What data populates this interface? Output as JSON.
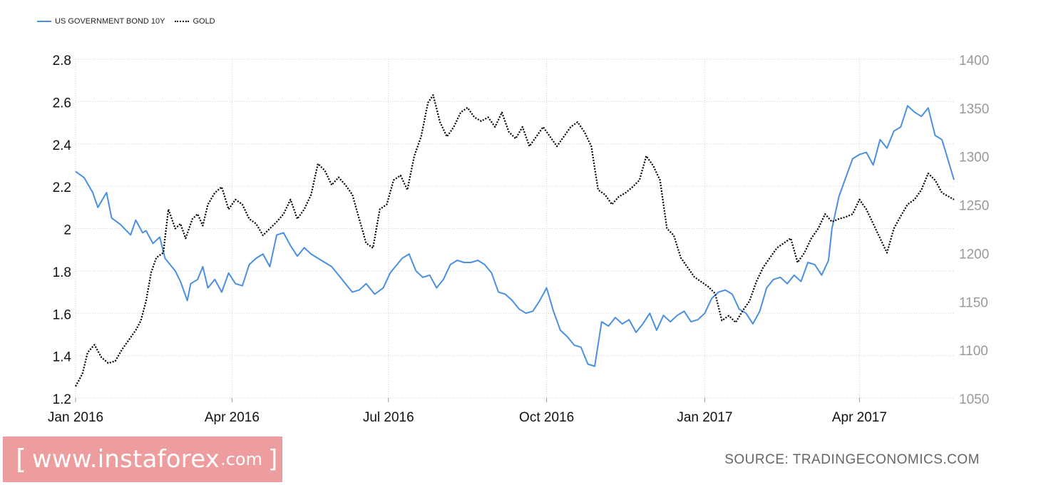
{
  "legend": {
    "items": [
      {
        "label": "US GOVERNMENT BOND 10Y",
        "style": "solid",
        "color": "#4a90e2"
      },
      {
        "label": "GOLD",
        "style": "dotted",
        "color": "#000000"
      }
    ]
  },
  "footer": {
    "brand_open": "[",
    "brand_main": "www.instaforex",
    "brand_domain": ".com",
    "brand_close": "]",
    "brand_color": "#ee9d9f",
    "source": "SOURCE: TRADINGECONOMICS.COM"
  },
  "chart_data": {
    "type": "line",
    "grid": true,
    "legend_position": "top-left",
    "x_ticks": [
      {
        "label": "Jan 2016",
        "date": "2016-01-01"
      },
      {
        "label": "Apr 2016",
        "date": "2016-04-01"
      },
      {
        "label": "Jul 2016",
        "date": "2016-07-01"
      },
      {
        "label": "Oct 2016",
        "date": "2016-10-01"
      },
      {
        "label": "Jan 2017",
        "date": "2017-01-01"
      },
      {
        "label": "Apr 2017",
        "date": "2017-04-01"
      }
    ],
    "xlim": [
      "2016-01-01",
      "2017-05-26"
    ],
    "y_left": {
      "ticks": [
        "1.2",
        "1.4",
        "1.6",
        "1.8",
        "2",
        "2.2",
        "2.4",
        "2.6",
        "2.8"
      ],
      "ylim": [
        1.2,
        2.8
      ]
    },
    "y_right": {
      "ticks": [
        "1050",
        "1100",
        "1150",
        "1200",
        "1250",
        "1300",
        "1350",
        "1400"
      ],
      "ylim": [
        1050,
        1400
      ]
    },
    "series": [
      {
        "name": "US GOVERNMENT BOND 10Y",
        "axis": "left",
        "color": "#4a90e2",
        "style": "solid",
        "points": [
          [
            "2016-01-01",
            2.27
          ],
          [
            "2016-01-06",
            2.24
          ],
          [
            "2016-01-11",
            2.17
          ],
          [
            "2016-01-14",
            2.1
          ],
          [
            "2016-01-19",
            2.17
          ],
          [
            "2016-01-22",
            2.05
          ],
          [
            "2016-01-27",
            2.02
          ],
          [
            "2016-02-02",
            1.97
          ],
          [
            "2016-02-05",
            2.04
          ],
          [
            "2016-02-09",
            1.98
          ],
          [
            "2016-02-11",
            1.99
          ],
          [
            "2016-02-15",
            1.93
          ],
          [
            "2016-02-19",
            1.96
          ],
          [
            "2016-02-22",
            1.86
          ],
          [
            "2016-02-28",
            1.8
          ],
          [
            "2016-03-02",
            1.75
          ],
          [
            "2016-03-06",
            1.66
          ],
          [
            "2016-03-08",
            1.74
          ],
          [
            "2016-03-12",
            1.76
          ],
          [
            "2016-03-15",
            1.82
          ],
          [
            "2016-03-18",
            1.72
          ],
          [
            "2016-03-22",
            1.76
          ],
          [
            "2016-03-26",
            1.7
          ],
          [
            "2016-03-30",
            1.79
          ],
          [
            "2016-04-03",
            1.74
          ],
          [
            "2016-04-07",
            1.73
          ],
          [
            "2016-04-11",
            1.83
          ],
          [
            "2016-04-15",
            1.86
          ],
          [
            "2016-04-19",
            1.88
          ],
          [
            "2016-04-23",
            1.82
          ],
          [
            "2016-04-27",
            1.97
          ],
          [
            "2016-05-01",
            1.98
          ],
          [
            "2016-05-05",
            1.92
          ],
          [
            "2016-05-09",
            1.87
          ],
          [
            "2016-05-13",
            1.91
          ],
          [
            "2016-05-17",
            1.88
          ],
          [
            "2016-05-21",
            1.86
          ],
          [
            "2016-05-25",
            1.84
          ],
          [
            "2016-05-29",
            1.82
          ],
          [
            "2016-06-03",
            1.77
          ],
          [
            "2016-06-07",
            1.73
          ],
          [
            "2016-06-10",
            1.7
          ],
          [
            "2016-06-14",
            1.71
          ],
          [
            "2016-06-18",
            1.74
          ],
          [
            "2016-06-23",
            1.69
          ],
          [
            "2016-06-28",
            1.72
          ],
          [
            "2016-07-02",
            1.79
          ],
          [
            "2016-07-05",
            1.82
          ],
          [
            "2016-07-09",
            1.86
          ],
          [
            "2016-07-13",
            1.88
          ],
          [
            "2016-07-17",
            1.8
          ],
          [
            "2016-07-21",
            1.77
          ],
          [
            "2016-07-25",
            1.78
          ],
          [
            "2016-07-29",
            1.72
          ],
          [
            "2016-08-02",
            1.76
          ],
          [
            "2016-08-06",
            1.83
          ],
          [
            "2016-08-10",
            1.85
          ],
          [
            "2016-08-14",
            1.84
          ],
          [
            "2016-08-18",
            1.84
          ],
          [
            "2016-08-22",
            1.85
          ],
          [
            "2016-08-26",
            1.83
          ],
          [
            "2016-08-30",
            1.79
          ],
          [
            "2016-09-03",
            1.7
          ],
          [
            "2016-09-07",
            1.69
          ],
          [
            "2016-09-11",
            1.66
          ],
          [
            "2016-09-15",
            1.62
          ],
          [
            "2016-09-19",
            1.6
          ],
          [
            "2016-09-23",
            1.61
          ],
          [
            "2016-09-27",
            1.66
          ],
          [
            "2016-10-01",
            1.72
          ],
          [
            "2016-10-05",
            1.61
          ],
          [
            "2016-10-09",
            1.52
          ],
          [
            "2016-10-13",
            1.49
          ],
          [
            "2016-10-17",
            1.45
          ],
          [
            "2016-10-21",
            1.44
          ],
          [
            "2016-10-25",
            1.36
          ],
          [
            "2016-10-29",
            1.35
          ],
          [
            "2016-11-02",
            1.56
          ],
          [
            "2016-11-06",
            1.54
          ],
          [
            "2016-11-10",
            1.58
          ],
          [
            "2016-11-14",
            1.55
          ],
          [
            "2016-11-18",
            1.57
          ],
          [
            "2016-11-22",
            1.51
          ],
          [
            "2016-11-26",
            1.55
          ],
          [
            "2016-11-30",
            1.6
          ],
          [
            "2016-12-04",
            1.52
          ],
          [
            "2016-12-08",
            1.59
          ],
          [
            "2016-12-12",
            1.56
          ],
          [
            "2016-12-16",
            1.59
          ],
          [
            "2016-12-20",
            1.61
          ],
          [
            "2016-12-24",
            1.56
          ],
          [
            "2016-12-28",
            1.57
          ],
          [
            "2017-01-01",
            1.6
          ],
          [
            "2017-01-05",
            1.67
          ],
          [
            "2017-01-09",
            1.7
          ],
          [
            "2017-01-13",
            1.71
          ],
          [
            "2017-01-17",
            1.69
          ],
          [
            "2017-01-21",
            1.62
          ],
          [
            "2017-01-25",
            1.6
          ],
          [
            "2017-01-29",
            1.55
          ],
          [
            "2017-02-02",
            1.61
          ],
          [
            "2017-02-06",
            1.72
          ],
          [
            "2017-02-10",
            1.76
          ],
          [
            "2017-02-14",
            1.77
          ],
          [
            "2017-02-18",
            1.74
          ],
          [
            "2017-02-22",
            1.78
          ],
          [
            "2017-02-26",
            1.75
          ],
          [
            "2017-03-02",
            1.84
          ],
          [
            "2017-03-06",
            1.83
          ],
          [
            "2017-03-10",
            1.78
          ],
          [
            "2017-03-14",
            1.85
          ],
          [
            "2017-03-16",
            2.0
          ],
          [
            "2017-03-20",
            2.15
          ],
          [
            "2017-03-24",
            2.24
          ],
          [
            "2017-03-28",
            2.33
          ],
          [
            "2017-04-01",
            2.35
          ],
          [
            "2017-04-05",
            2.36
          ],
          [
            "2017-04-09",
            2.3
          ],
          [
            "2017-04-13",
            2.42
          ],
          [
            "2017-04-17",
            2.38
          ],
          [
            "2017-04-21",
            2.46
          ],
          [
            "2017-04-25",
            2.48
          ],
          [
            "2017-04-29",
            2.58
          ],
          [
            "2017-05-03",
            2.55
          ],
          [
            "2017-05-07",
            2.53
          ],
          [
            "2017-05-11",
            2.57
          ],
          [
            "2017-05-15",
            2.44
          ],
          [
            "2017-05-19",
            2.42
          ],
          [
            "2017-05-26",
            2.23
          ]
        ]
      },
      {
        "name": "GOLD",
        "axis": "right",
        "color": "#000000",
        "style": "dotted",
        "points": [
          [
            "2016-01-01",
            1062
          ],
          [
            "2016-01-05",
            1075
          ],
          [
            "2016-01-08",
            1097
          ],
          [
            "2016-01-12",
            1105
          ],
          [
            "2016-01-16",
            1092
          ],
          [
            "2016-01-20",
            1086
          ],
          [
            "2016-01-24",
            1088
          ],
          [
            "2016-01-28",
            1100
          ],
          [
            "2016-02-01",
            1110
          ],
          [
            "2016-02-05",
            1120
          ],
          [
            "2016-02-08",
            1130
          ],
          [
            "2016-02-11",
            1150
          ],
          [
            "2016-02-14",
            1180
          ],
          [
            "2016-02-17",
            1195
          ],
          [
            "2016-02-21",
            1200
          ],
          [
            "2016-02-24",
            1245
          ],
          [
            "2016-02-28",
            1225
          ],
          [
            "2016-03-02",
            1230
          ],
          [
            "2016-03-05",
            1215
          ],
          [
            "2016-03-09",
            1235
          ],
          [
            "2016-03-12",
            1240
          ],
          [
            "2016-03-15",
            1228
          ],
          [
            "2016-03-18",
            1250
          ],
          [
            "2016-03-22",
            1262
          ],
          [
            "2016-03-26",
            1268
          ],
          [
            "2016-03-30",
            1245
          ],
          [
            "2016-04-03",
            1255
          ],
          [
            "2016-04-07",
            1250
          ],
          [
            "2016-04-11",
            1235
          ],
          [
            "2016-04-15",
            1230
          ],
          [
            "2016-04-19",
            1218
          ],
          [
            "2016-04-23",
            1225
          ],
          [
            "2016-04-27",
            1232
          ],
          [
            "2016-05-01",
            1240
          ],
          [
            "2016-05-05",
            1255
          ],
          [
            "2016-05-09",
            1235
          ],
          [
            "2016-05-13",
            1245
          ],
          [
            "2016-05-17",
            1260
          ],
          [
            "2016-05-21",
            1292
          ],
          [
            "2016-05-25",
            1285
          ],
          [
            "2016-05-29",
            1270
          ],
          [
            "2016-06-02",
            1278
          ],
          [
            "2016-06-06",
            1270
          ],
          [
            "2016-06-10",
            1260
          ],
          [
            "2016-06-14",
            1235
          ],
          [
            "2016-06-18",
            1210
          ],
          [
            "2016-06-22",
            1205
          ],
          [
            "2016-06-26",
            1245
          ],
          [
            "2016-06-30",
            1250
          ],
          [
            "2016-07-04",
            1275
          ],
          [
            "2016-07-08",
            1280
          ],
          [
            "2016-07-12",
            1265
          ],
          [
            "2016-07-16",
            1300
          ],
          [
            "2016-07-20",
            1320
          ],
          [
            "2016-07-24",
            1355
          ],
          [
            "2016-07-27",
            1363
          ],
          [
            "2016-07-31",
            1335
          ],
          [
            "2016-08-04",
            1320
          ],
          [
            "2016-08-08",
            1330
          ],
          [
            "2016-08-12",
            1345
          ],
          [
            "2016-08-16",
            1350
          ],
          [
            "2016-08-20",
            1340
          ],
          [
            "2016-08-24",
            1336
          ],
          [
            "2016-08-28",
            1340
          ],
          [
            "2016-09-01",
            1330
          ],
          [
            "2016-09-05",
            1345
          ],
          [
            "2016-09-09",
            1325
          ],
          [
            "2016-09-13",
            1318
          ],
          [
            "2016-09-17",
            1330
          ],
          [
            "2016-09-21",
            1310
          ],
          [
            "2016-09-25",
            1320
          ],
          [
            "2016-09-29",
            1330
          ],
          [
            "2016-10-03",
            1320
          ],
          [
            "2016-10-07",
            1310
          ],
          [
            "2016-10-11",
            1320
          ],
          [
            "2016-10-15",
            1330
          ],
          [
            "2016-10-19",
            1335
          ],
          [
            "2016-10-23",
            1325
          ],
          [
            "2016-10-27",
            1310
          ],
          [
            "2016-10-31",
            1265
          ],
          [
            "2016-11-04",
            1260
          ],
          [
            "2016-11-08",
            1250
          ],
          [
            "2016-11-12",
            1258
          ],
          [
            "2016-11-16",
            1262
          ],
          [
            "2016-11-20",
            1268
          ],
          [
            "2016-11-24",
            1275
          ],
          [
            "2016-11-28",
            1300
          ],
          [
            "2016-12-02",
            1290
          ],
          [
            "2016-12-06",
            1275
          ],
          [
            "2016-12-10",
            1225
          ],
          [
            "2016-12-14",
            1218
          ],
          [
            "2016-12-18",
            1195
          ],
          [
            "2016-12-22",
            1185
          ],
          [
            "2016-12-26",
            1175
          ],
          [
            "2016-12-30",
            1170
          ],
          [
            "2017-01-03",
            1165
          ],
          [
            "2017-01-07",
            1158
          ],
          [
            "2017-01-11",
            1130
          ],
          [
            "2017-01-15",
            1135
          ],
          [
            "2017-01-19",
            1128
          ],
          [
            "2017-01-23",
            1140
          ],
          [
            "2017-01-27",
            1150
          ],
          [
            "2017-01-31",
            1170
          ],
          [
            "2017-02-04",
            1185
          ],
          [
            "2017-02-08",
            1195
          ],
          [
            "2017-02-12",
            1205
          ],
          [
            "2017-02-16",
            1210
          ],
          [
            "2017-02-20",
            1215
          ],
          [
            "2017-02-24",
            1190
          ],
          [
            "2017-02-28",
            1200
          ],
          [
            "2017-03-04",
            1215
          ],
          [
            "2017-03-08",
            1225
          ],
          [
            "2017-03-12",
            1240
          ],
          [
            "2017-03-16",
            1232
          ],
          [
            "2017-03-20",
            1235
          ],
          [
            "2017-03-24",
            1237
          ],
          [
            "2017-03-28",
            1240
          ],
          [
            "2017-04-01",
            1255
          ],
          [
            "2017-04-05",
            1245
          ],
          [
            "2017-04-09",
            1230
          ],
          [
            "2017-04-13",
            1215
          ],
          [
            "2017-04-17",
            1200
          ],
          [
            "2017-04-21",
            1225
          ],
          [
            "2017-04-25",
            1238
          ],
          [
            "2017-04-29",
            1250
          ],
          [
            "2017-05-03",
            1255
          ],
          [
            "2017-05-07",
            1265
          ],
          [
            "2017-05-11",
            1282
          ],
          [
            "2017-05-15",
            1275
          ],
          [
            "2017-05-19",
            1262
          ],
          [
            "2017-05-26",
            1255
          ]
        ]
      }
    ]
  }
}
